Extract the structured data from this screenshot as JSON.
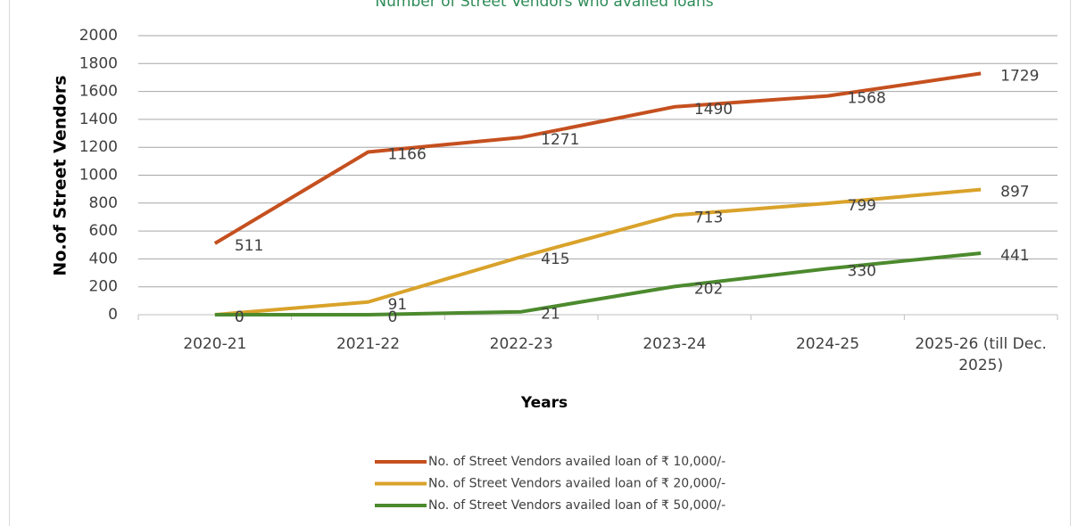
{
  "chart_data": {
    "type": "line",
    "title": "Number of Street Vendors who availed loans",
    "xlabel": "Years",
    "ylabel": "No.of Street Vendors",
    "categories": [
      "2020-21",
      "2021-22",
      "2022-23",
      "2023-24",
      "2024-25",
      "2025-26 (till Dec. 2025)"
    ],
    "series": [
      {
        "name": "No. of Street Vendors availed loan of ₹ 10,000/-",
        "color": "#c5501f",
        "values": [
          511,
          1166,
          1271,
          1490,
          1568,
          1729
        ]
      },
      {
        "name": "No. of Street Vendors availed loan of ₹ 20,000/-",
        "color": "#d9a22a",
        "values": [
          0,
          91,
          415,
          713,
          799,
          897
        ]
      },
      {
        "name": "No. of Street Vendors availed loan of ₹ 50,000/-",
        "color": "#4c8a2e",
        "values": [
          0,
          0,
          21,
          202,
          330,
          441
        ]
      }
    ],
    "ylim": [
      0,
      2000
    ],
    "yticks": [
      0,
      200,
      400,
      600,
      800,
      1000,
      1200,
      1400,
      1600,
      1800,
      2000
    ],
    "grid": true,
    "legend": "bottom"
  }
}
